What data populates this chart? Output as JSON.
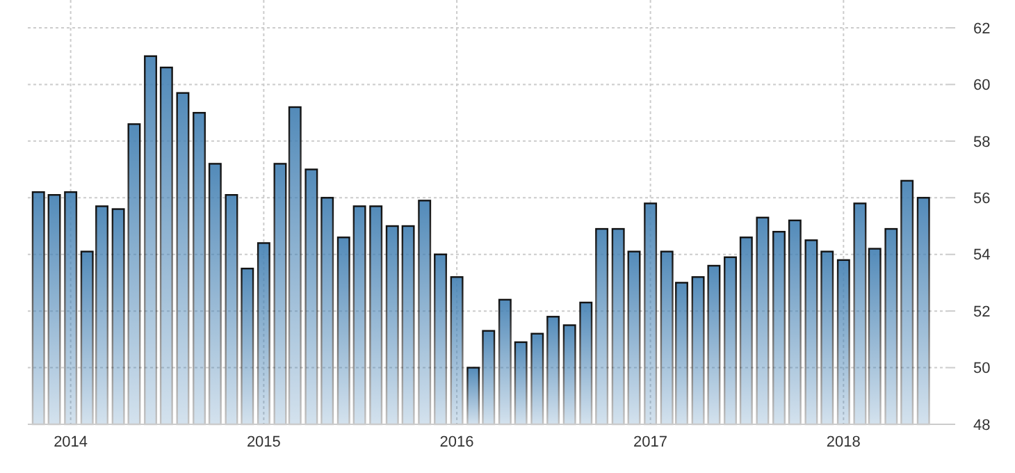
{
  "chart_data": {
    "type": "bar",
    "x": [
      "2013-11",
      "2013-12",
      "2014-01",
      "2014-02",
      "2014-03",
      "2014-04",
      "2014-05",
      "2014-06",
      "2014-07",
      "2014-08",
      "2014-09",
      "2014-10",
      "2014-11",
      "2014-12",
      "2015-01",
      "2015-02",
      "2015-03",
      "2015-04",
      "2015-05",
      "2015-06",
      "2015-07",
      "2015-08",
      "2015-09",
      "2015-10",
      "2015-11",
      "2015-12",
      "2016-01",
      "2016-02",
      "2016-03",
      "2016-04",
      "2016-05",
      "2016-06",
      "2016-07",
      "2016-08",
      "2016-09",
      "2016-10",
      "2016-11",
      "2016-12",
      "2017-01",
      "2017-02",
      "2017-03",
      "2017-04",
      "2017-05",
      "2017-06",
      "2017-07",
      "2017-08",
      "2017-09",
      "2017-10",
      "2017-11",
      "2017-12",
      "2018-01",
      "2018-02",
      "2018-03",
      "2018-04",
      "2018-05",
      "2018-06"
    ],
    "values": [
      56.2,
      56.1,
      56.2,
      54.1,
      55.7,
      55.6,
      58.6,
      61.0,
      60.6,
      59.7,
      59.0,
      57.2,
      56.1,
      53.5,
      54.4,
      57.2,
      59.2,
      57.0,
      56.0,
      54.6,
      55.7,
      55.7,
      55.0,
      55.0,
      55.9,
      54.0,
      53.2,
      50.0,
      51.3,
      52.4,
      50.9,
      51.2,
      51.8,
      51.5,
      52.3,
      54.9,
      54.9,
      54.1,
      55.8,
      54.1,
      53.0,
      53.2,
      53.6,
      53.9,
      54.6,
      55.3,
      54.8,
      55.2,
      54.5,
      54.1,
      53.8,
      55.8,
      54.2,
      54.9,
      56.6,
      56.0
    ],
    "color": "#4682b4",
    "xlim": [
      "2013-10-12",
      "2018-07-18"
    ],
    "xticks": [
      "2014",
      "2015",
      "2016",
      "2017",
      "2018"
    ],
    "ylim": [
      48,
      62
    ],
    "yticks": [
      48,
      50,
      52,
      54,
      56,
      58,
      60,
      62
    ],
    "grid": true
  }
}
